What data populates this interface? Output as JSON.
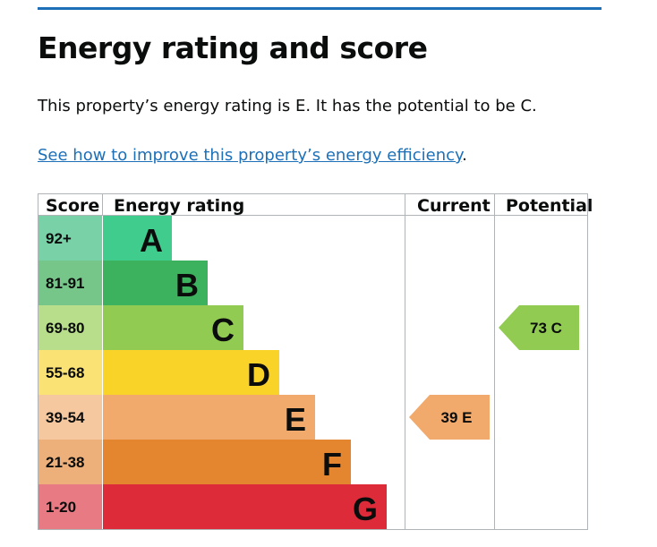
{
  "heading": "Energy rating and score",
  "summary": "This property’s energy rating is E. It has the potential to be C.",
  "improve_link": {
    "text": "See how to improve this property’s energy efficiency",
    "suffix": "."
  },
  "table": {
    "headers": {
      "score": "Score",
      "rating": "Energy rating",
      "current": "Current",
      "potential": "Potential"
    },
    "bands": [
      {
        "score": "92+",
        "letter": "A",
        "color": "#3fcc8d",
        "score_bg": "#78d1a7"
      },
      {
        "score": "81-91",
        "letter": "B",
        "color": "#3cb15e",
        "score_bg": "#76c68a"
      },
      {
        "score": "69-80",
        "letter": "C",
        "color": "#92cb51",
        "score_bg": "#b8de8b"
      },
      {
        "score": "55-68",
        "letter": "D",
        "color": "#fad328",
        "score_bg": "#fbe274"
      },
      {
        "score": "39-54",
        "letter": "E",
        "color": "#f2aa6c",
        "score_bg": "#f5c8a0"
      },
      {
        "score": "21-38",
        "letter": "F",
        "color": "#e3862f",
        "score_bg": "#eeb07a"
      },
      {
        "score": "1-20",
        "letter": "G",
        "color": "#dd2b3a",
        "score_bg": "#e87a83"
      }
    ],
    "current": {
      "value": "39",
      "band": "E",
      "label": "39 E",
      "color": "#f2aa6c"
    },
    "potential": {
      "value": "73",
      "band": "C",
      "label": "73 C",
      "color": "#92cb51"
    }
  }
}
